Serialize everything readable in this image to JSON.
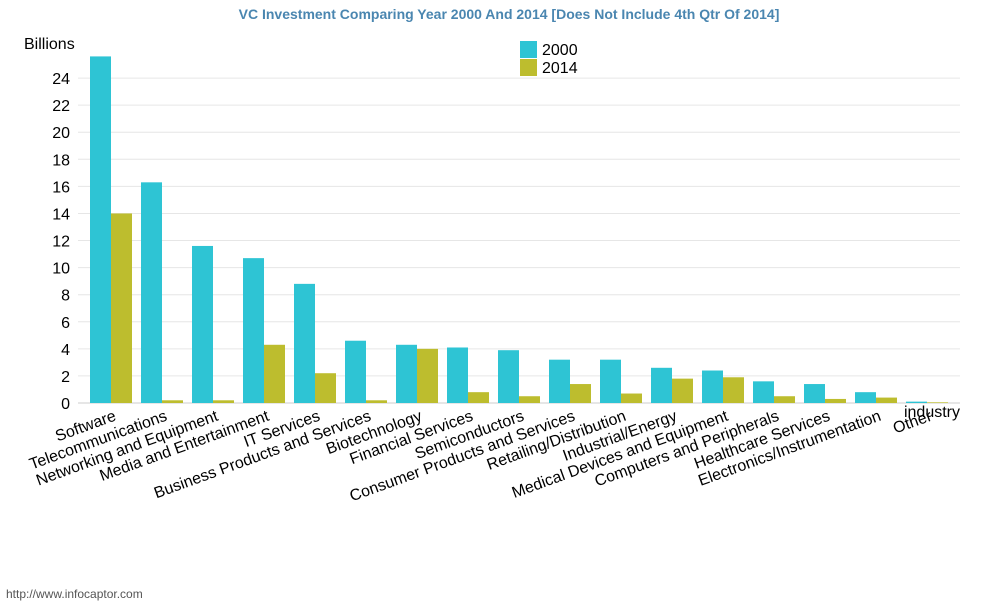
{
  "source_text": "http://www.infocaptor.com",
  "colors": {
    "series_2000": "#2ec4d4",
    "series_2014": "#bdbd2e",
    "title": "#4a86b0",
    "grid": "#e6e6e6",
    "axis": "#cccccc"
  },
  "chart_data": {
    "type": "bar",
    "title": "VC Investment Comparing Year 2000 And 2014 [Does Not Include 4th Qtr Of 2014]",
    "ylabel": "Billions",
    "xlabel": "industry",
    "ylim": [
      0,
      26
    ],
    "yticks": [
      0,
      2,
      4,
      6,
      8,
      10,
      12,
      14,
      16,
      18,
      20,
      22,
      24
    ],
    "grid": true,
    "legend_position": "top-center",
    "categories": [
      "Software",
      "Telecommunications",
      "Networking and Equipment",
      "Media and Entertainment",
      "IT Services",
      "Business Products and Services",
      "Biotechnology",
      "Financial Services",
      "Semiconductors",
      "Consumer Products and Services",
      "Retailing/Distribution",
      "Industrial/Energy",
      "Medical Devices and Equipment",
      "Computers and Peripherals",
      "Healthcare Services",
      "Electronics/Instrumentation",
      "Other"
    ],
    "series": [
      {
        "name": "2000",
        "values": [
          25.6,
          16.3,
          11.6,
          10.7,
          8.8,
          4.6,
          4.3,
          4.1,
          3.9,
          3.2,
          3.2,
          2.6,
          2.4,
          1.6,
          1.4,
          0.8,
          0.1
        ]
      },
      {
        "name": "2014",
        "values": [
          14.0,
          0.2,
          0.2,
          4.3,
          2.2,
          0.2,
          4.0,
          0.8,
          0.5,
          1.4,
          0.7,
          1.8,
          1.9,
          0.5,
          0.3,
          0.4,
          0.05
        ]
      }
    ]
  }
}
